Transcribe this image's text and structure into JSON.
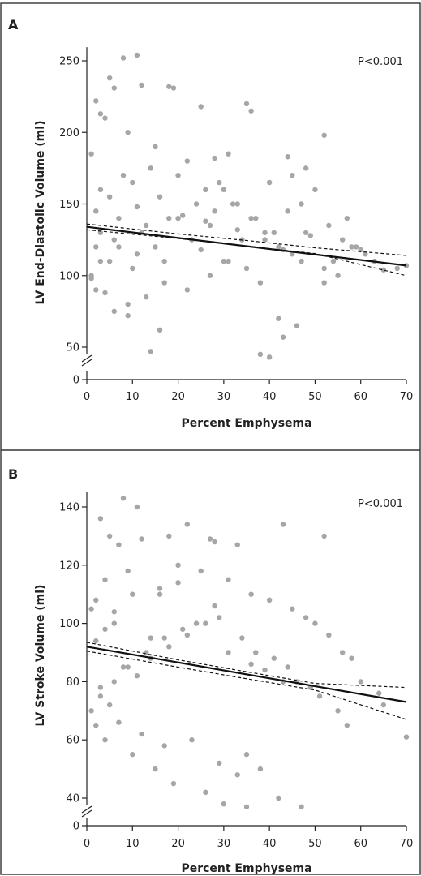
{
  "chart_data": [
    {
      "panel": "A",
      "type": "scatter",
      "title": "",
      "xlabel": "Percent Emphysema",
      "ylabel": "LV End-Diastolic Volume (ml)",
      "annotation": "P<0.001",
      "xlim": [
        0,
        70
      ],
      "ylim": [
        0,
        255
      ],
      "axis_break_between": [
        0,
        50
      ],
      "x_ticks": [
        0,
        10,
        20,
        30,
        40,
        50,
        60,
        70
      ],
      "y_ticks": [
        0,
        50,
        100,
        150,
        200,
        250
      ],
      "grid": false,
      "point_color": "#a6a6a6",
      "line_color": "#111111",
      "regression": {
        "x": [
          0,
          70
        ],
        "y": [
          134,
          107
        ]
      },
      "ci_upper": {
        "x": [
          0,
          20,
          35,
          50,
          70
        ],
        "y": [
          136,
          129.1,
          124.5,
          119.4,
          114
        ]
      },
      "ci_lower": {
        "x": [
          0,
          20,
          35,
          50,
          70
        ],
        "y": [
          132,
          125.9,
          120.5,
          115.4,
          100
        ]
      },
      "points": {
        "x": [
          8,
          11,
          5,
          12,
          2,
          6,
          18,
          19,
          25,
          35,
          36,
          52,
          3,
          4,
          9,
          1,
          15,
          22,
          31,
          28,
          44,
          48,
          50,
          57,
          58,
          60,
          63,
          65,
          68,
          70,
          46,
          43,
          40,
          38,
          42,
          52,
          55,
          14,
          16,
          6,
          9,
          2,
          1,
          3,
          7,
          12,
          18,
          24,
          30,
          33,
          40,
          45,
          48,
          3,
          5,
          8,
          2,
          10,
          14,
          20,
          26,
          29,
          32,
          37,
          41,
          44,
          47,
          49,
          53,
          56,
          59,
          61,
          38,
          35,
          30,
          27,
          22,
          17,
          13,
          9,
          4,
          1,
          2,
          3,
          5,
          6,
          7,
          10,
          11,
          13,
          15,
          17,
          20,
          23,
          25,
          27,
          28,
          31,
          34,
          36,
          39,
          42,
          45,
          47,
          52,
          54,
          11,
          16,
          21,
          26,
          33,
          39,
          43
        ],
        "y": [
          252,
          254,
          238,
          233,
          222,
          231,
          232,
          231,
          218,
          220,
          215,
          198,
          213,
          210,
          200,
          185,
          190,
          180,
          185,
          182,
          183,
          175,
          160,
          140,
          120,
          118,
          110,
          104,
          105,
          107,
          65,
          57,
          43,
          45,
          70,
          95,
          100,
          47,
          62,
          75,
          72,
          90,
          98,
          110,
          120,
          130,
          140,
          150,
          160,
          150,
          165,
          170,
          130,
          160,
          155,
          170,
          145,
          165,
          175,
          170,
          160,
          165,
          150,
          140,
          130,
          145,
          150,
          128,
          135,
          125,
          120,
          115,
          95,
          105,
          110,
          100,
          90,
          95,
          85,
          80,
          88,
          100,
          120,
          130,
          110,
          125,
          140,
          105,
          115,
          135,
          120,
          110,
          140,
          125,
          118,
          135,
          145,
          110,
          125,
          140,
          130,
          120,
          115,
          110,
          105,
          110,
          148,
          155,
          142,
          138,
          132,
          125,
          118
        ]
      }
    },
    {
      "panel": "B",
      "type": "scatter",
      "title": "",
      "xlabel": "Percent Emphysema",
      "ylabel": "LV Stroke Volume (ml)",
      "annotation": "P<0.001",
      "xlim": [
        0,
        70
      ],
      "ylim": [
        0,
        143
      ],
      "axis_break_between": [
        0,
        40
      ],
      "x_ticks": [
        0,
        10,
        20,
        30,
        40,
        50,
        60,
        70
      ],
      "y_ticks": [
        0,
        40,
        60,
        80,
        100,
        120,
        140
      ],
      "grid": false,
      "point_color": "#a6a6a6",
      "line_color": "#111111",
      "regression": {
        "x": [
          0,
          70
        ],
        "y": [
          92,
          73
        ]
      },
      "ci_upper": {
        "x": [
          0,
          20,
          35,
          50,
          70
        ],
        "y": [
          93.5,
          87.5,
          83.4,
          79.4,
          78
        ]
      },
      "ci_lower": {
        "x": [
          0,
          20,
          35,
          50,
          70
        ],
        "y": [
          90.5,
          85,
          81,
          77.1,
          67
        ]
      },
      "points": {
        "x": [
          8,
          11,
          3,
          5,
          7,
          12,
          18,
          22,
          27,
          28,
          33,
          43,
          52,
          16,
          9,
          4,
          2,
          1,
          6,
          14,
          20,
          25,
          31,
          36,
          40,
          45,
          48,
          50,
          53,
          56,
          58,
          60,
          64,
          65,
          70,
          47,
          42,
          35,
          30,
          26,
          19,
          15,
          10,
          4,
          2,
          1,
          3,
          6,
          9,
          13,
          17,
          21,
          24,
          29,
          34,
          37,
          41,
          44,
          46,
          49,
          51,
          55,
          57,
          35,
          38,
          33,
          29,
          23,
          17,
          12,
          7,
          5,
          3,
          8,
          11,
          14,
          18,
          22,
          26,
          31,
          36,
          39,
          43,
          2,
          4,
          6,
          10,
          16,
          20,
          28
        ],
        "y": [
          143,
          140,
          136,
          130,
          127,
          129,
          130,
          134,
          129,
          128,
          127,
          134,
          130,
          110,
          118,
          115,
          108,
          105,
          100,
          95,
          120,
          118,
          115,
          110,
          108,
          105,
          102,
          100,
          96,
          90,
          88,
          80,
          76,
          72,
          61,
          37,
          40,
          37,
          38,
          42,
          45,
          50,
          55,
          60,
          65,
          70,
          75,
          80,
          85,
          90,
          95,
          98,
          100,
          102,
          95,
          90,
          88,
          85,
          80,
          78,
          75,
          70,
          65,
          55,
          50,
          48,
          52,
          60,
          58,
          62,
          66,
          72,
          78,
          85,
          82,
          88,
          92,
          96,
          100,
          90,
          86,
          84,
          80,
          94,
          98,
          104,
          110,
          112,
          114,
          106
        ]
      }
    }
  ],
  "panels": {
    "A": {
      "letter": "A",
      "x_ticks_text": [
        "0",
        "10",
        "20",
        "30",
        "40",
        "50",
        "60",
        "70"
      ],
      "y_ticks_text": [
        "0",
        "50",
        "100",
        "150",
        "200",
        "250"
      ]
    },
    "B": {
      "letter": "B",
      "x_ticks_text": [
        "0",
        "10",
        "20",
        "30",
        "40",
        "50",
        "60",
        "70"
      ],
      "y_ticks_text": [
        "0",
        "40",
        "60",
        "80",
        "100",
        "120",
        "140"
      ]
    }
  }
}
